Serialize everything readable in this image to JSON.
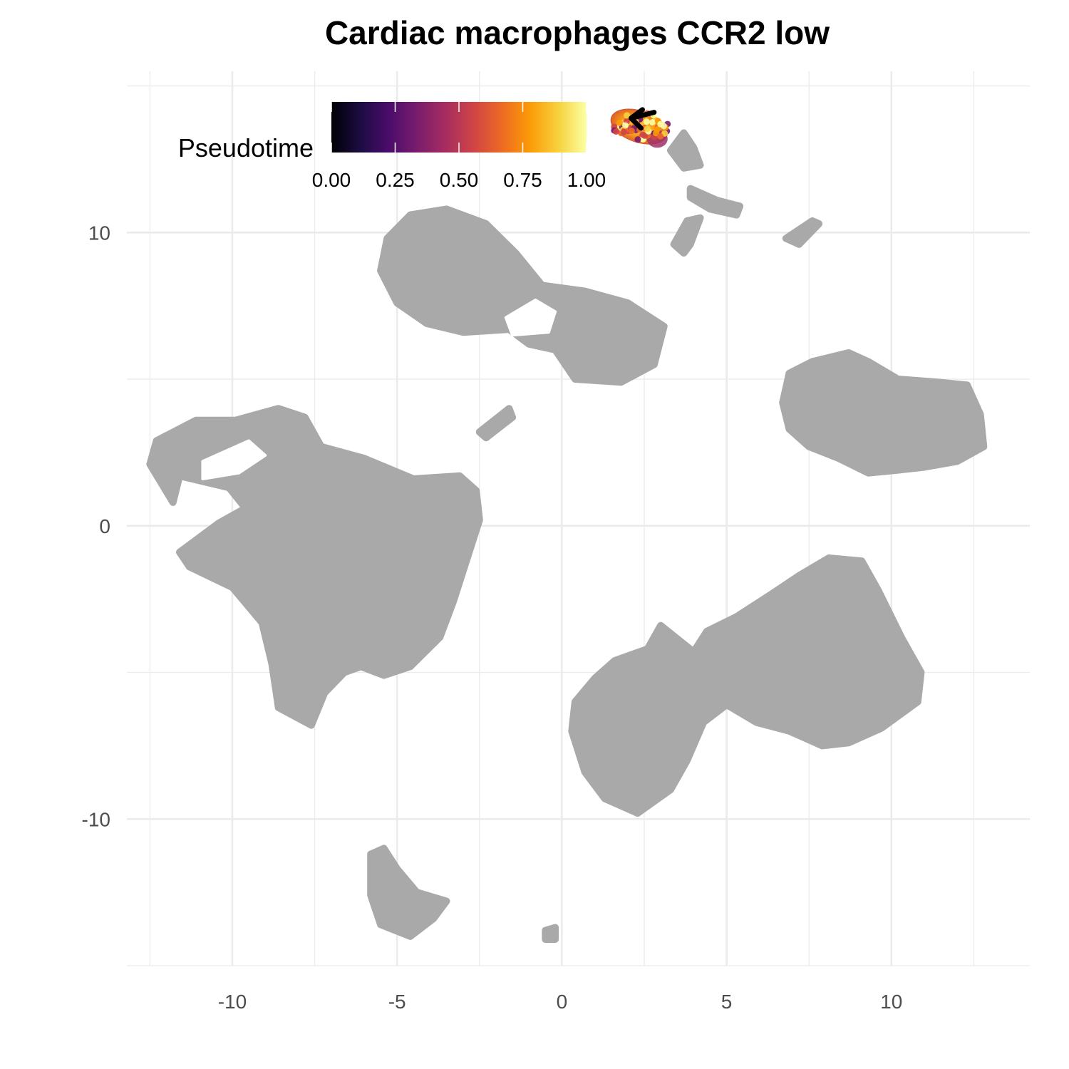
{
  "chart_data": {
    "type": "scatter",
    "title": "Cardiac macrophages CCR2 low",
    "xlabel": "",
    "ylabel": "",
    "xlim": [
      -13.2,
      14.2
    ],
    "ylim": [
      -15,
      15.5
    ],
    "x_ticks": [
      -10,
      -5,
      0,
      5,
      10
    ],
    "x_tick_labels": [
      "-10",
      "-5",
      "0",
      "5",
      "10"
    ],
    "y_ticks": [
      10,
      0,
      -10
    ],
    "y_tick_labels": [
      "10",
      "0",
      "-10"
    ],
    "grid": true,
    "background_color": "#a9a9a9",
    "highlight_color_scale": "inferno",
    "legend": {
      "title": "Pseudotime",
      "position": "top-left inside",
      "range": [
        0,
        1
      ],
      "tick_values": [
        0,
        0.25,
        0.5,
        0.75,
        1
      ],
      "tick_labels": [
        "0.00",
        "0.25",
        "0.50",
        "0.75",
        "1.00"
      ],
      "stops": [
        "#000004",
        "#1b0c41",
        "#4a0c6b",
        "#781c6d",
        "#a52c60",
        "#cf4446",
        "#ed6925",
        "#fb9b06",
        "#f7d13d",
        "#fcffa4"
      ]
    },
    "background_clusters": [
      {
        "name": "cluster-top-left",
        "outline": [
          [
            -5.5,
            8.7
          ],
          [
            -5.3,
            9.8
          ],
          [
            -4.6,
            10.6
          ],
          [
            -3.5,
            10.8
          ],
          [
            -2.3,
            10.3
          ],
          [
            -1.4,
            9.3
          ],
          [
            -0.6,
            8.2
          ],
          [
            0.7,
            8.0
          ],
          [
            2.0,
            7.6
          ],
          [
            3.1,
            6.8
          ],
          [
            2.8,
            5.5
          ],
          [
            1.8,
            4.9
          ],
          [
            0.4,
            5.0
          ],
          [
            -0.2,
            6.0
          ],
          [
            -1.0,
            6.2
          ],
          [
            -1.6,
            6.7
          ],
          [
            -3.0,
            6.6
          ],
          [
            -4.1,
            6.9
          ],
          [
            -5.0,
            7.6
          ]
        ]
      },
      {
        "name": "cluster-left",
        "outline": [
          [
            -12.3,
            2.9
          ],
          [
            -11.1,
            3.6
          ],
          [
            -9.9,
            3.6
          ],
          [
            -8.6,
            4.0
          ],
          [
            -7.8,
            3.7
          ],
          [
            -7.3,
            2.7
          ],
          [
            -6.0,
            2.3
          ],
          [
            -4.5,
            1.6
          ],
          [
            -3.1,
            1.7
          ],
          [
            -2.6,
            1.2
          ],
          [
            -2.5,
            0.2
          ],
          [
            -2.9,
            -1.2
          ],
          [
            -3.3,
            -2.6
          ],
          [
            -3.7,
            -3.8
          ],
          [
            -4.6,
            -4.8
          ],
          [
            -5.4,
            -5.1
          ],
          [
            -6.1,
            -4.8
          ],
          [
            -6.6,
            -5.0
          ],
          [
            -7.2,
            -5.7
          ],
          [
            -7.6,
            -6.8
          ],
          [
            -8.6,
            -6.2
          ],
          [
            -8.8,
            -4.7
          ],
          [
            -9.1,
            -3.3
          ],
          [
            -10.0,
            -2.1
          ],
          [
            -11.3,
            -1.4
          ],
          [
            -11.6,
            -0.9
          ],
          [
            -10.4,
            0.1
          ],
          [
            -9.6,
            0.6
          ],
          [
            -10.1,
            1.3
          ],
          [
            -11.6,
            1.7
          ],
          [
            -11.8,
            0.8
          ],
          [
            -12.5,
            2.1
          ]
        ]
      },
      {
        "name": "cluster-right",
        "outline": [
          [
            6.9,
            5.2
          ],
          [
            7.6,
            5.6
          ],
          [
            8.7,
            5.9
          ],
          [
            9.3,
            5.6
          ],
          [
            10.2,
            5.0
          ],
          [
            11.4,
            4.9
          ],
          [
            12.3,
            4.8
          ],
          [
            12.7,
            3.8
          ],
          [
            12.8,
            2.7
          ],
          [
            12.0,
            2.2
          ],
          [
            11.0,
            2.0
          ],
          [
            10.2,
            1.9
          ],
          [
            9.3,
            1.8
          ],
          [
            8.4,
            2.3
          ],
          [
            7.5,
            2.7
          ],
          [
            6.9,
            3.3
          ],
          [
            6.7,
            4.2
          ]
        ]
      },
      {
        "name": "cluster-bottom-middle",
        "outline": [
          [
            1.0,
            -5.2
          ],
          [
            1.6,
            -4.6
          ],
          [
            2.6,
            -4.2
          ],
          [
            3.0,
            -3.4
          ],
          [
            4.0,
            -4.3
          ],
          [
            4.4,
            -3.6
          ],
          [
            5.3,
            -3.1
          ],
          [
            6.4,
            -2.3
          ],
          [
            7.2,
            -1.7
          ],
          [
            8.1,
            -1.1
          ],
          [
            9.1,
            -1.2
          ],
          [
            9.6,
            -2.2
          ],
          [
            10.3,
            -3.8
          ],
          [
            10.9,
            -5.0
          ],
          [
            10.8,
            -6.0
          ],
          [
            9.7,
            -6.9
          ],
          [
            8.7,
            -7.4
          ],
          [
            7.9,
            -7.5
          ],
          [
            6.9,
            -7.0
          ],
          [
            5.9,
            -6.7
          ],
          [
            5.0,
            -6.1
          ],
          [
            4.3,
            -6.7
          ],
          [
            3.8,
            -8.0
          ],
          [
            3.3,
            -9.0
          ],
          [
            2.3,
            -9.8
          ],
          [
            1.3,
            -9.3
          ],
          [
            0.7,
            -8.4
          ],
          [
            0.3,
            -7.0
          ],
          [
            0.4,
            -6.0
          ]
        ]
      },
      {
        "name": "cluster-bottom-left",
        "outline": [
          [
            -5.8,
            -11.2
          ],
          [
            -5.4,
            -11.0
          ],
          [
            -5.0,
            -11.7
          ],
          [
            -4.4,
            -12.5
          ],
          [
            -3.5,
            -12.8
          ],
          [
            -3.9,
            -13.4
          ],
          [
            -4.6,
            -14.0
          ],
          [
            -5.5,
            -13.6
          ],
          [
            -5.8,
            -12.6
          ]
        ]
      },
      {
        "name": "cluster-top-strip-1",
        "outline": [
          [
            3.3,
            12.8
          ],
          [
            3.7,
            13.4
          ],
          [
            4.0,
            12.9
          ],
          [
            4.2,
            12.3
          ],
          [
            3.7,
            12.2
          ]
        ]
      },
      {
        "name": "cluster-top-strip-2",
        "outline": [
          [
            3.9,
            11.5
          ],
          [
            4.7,
            11.1
          ],
          [
            5.4,
            10.9
          ],
          [
            5.3,
            10.6
          ],
          [
            4.5,
            10.8
          ],
          [
            3.9,
            11.2
          ]
        ]
      },
      {
        "name": "cluster-top-strip-3",
        "outline": [
          [
            3.8,
            10.4
          ],
          [
            4.2,
            10.5
          ],
          [
            3.9,
            9.6
          ],
          [
            3.7,
            9.3
          ],
          [
            3.4,
            9.6
          ]
        ]
      },
      {
        "name": "cluster-top-strip-4",
        "outline": [
          [
            6.8,
            9.8
          ],
          [
            7.6,
            10.4
          ],
          [
            7.8,
            10.3
          ],
          [
            7.2,
            9.6
          ]
        ]
      },
      {
        "name": "cluster-mid-strip",
        "outline": [
          [
            -2.5,
            3.2
          ],
          [
            -1.6,
            4.0
          ],
          [
            -1.5,
            3.7
          ],
          [
            -2.3,
            3.0
          ]
        ]
      },
      {
        "name": "cluster-small-dot",
        "outline": [
          [
            -0.5,
            -13.8
          ],
          [
            -0.2,
            -13.7
          ],
          [
            -0.2,
            -14.1
          ],
          [
            -0.5,
            -14.1
          ]
        ]
      }
    ],
    "background_holes": [
      {
        "name": "hole-top-left",
        "outline": [
          [
            -1.7,
            7.1
          ],
          [
            -0.8,
            7.7
          ],
          [
            -0.2,
            7.3
          ],
          [
            -0.4,
            6.6
          ],
          [
            -1.5,
            6.5
          ]
        ]
      },
      {
        "name": "hole-left",
        "outline": [
          [
            -10.9,
            2.2
          ],
          [
            -9.5,
            2.9
          ],
          [
            -9.0,
            2.4
          ],
          [
            -9.8,
            1.8
          ],
          [
            -10.9,
            1.6
          ]
        ]
      }
    ],
    "highlight_cluster": {
      "center": [
        2.4,
        13.8
      ],
      "radius_x": 0.9,
      "radius_y": 0.55,
      "arrow_from": [
        2.8,
        14.1
      ],
      "arrow_to": [
        2.1,
        13.9
      ]
    }
  }
}
